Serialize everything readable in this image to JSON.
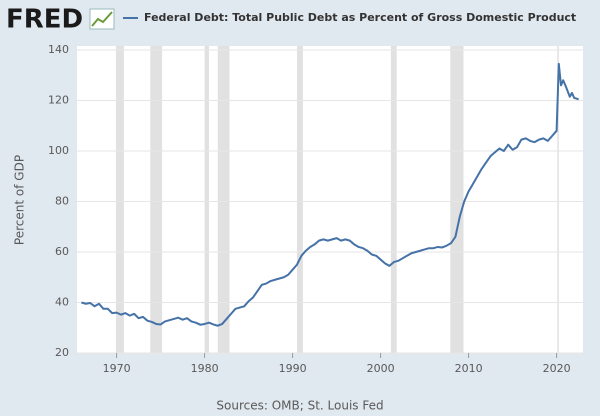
{
  "logo": "FRED",
  "chart_data": {
    "type": "line",
    "title": "Federal Debt: Total Public Debt as Percent of Gross Domestic Product",
    "y_label": "Percent of GDP",
    "source": "Sources: OMB; St. Louis Fed",
    "x": [
      1966.0,
      1966.5,
      1967.0,
      1967.5,
      1968.0,
      1968.5,
      1969.0,
      1969.5,
      1970.0,
      1970.5,
      1971.0,
      1971.5,
      1972.0,
      1972.5,
      1973.0,
      1973.5,
      1974.0,
      1974.5,
      1975.0,
      1975.5,
      1976.0,
      1976.5,
      1977.0,
      1977.5,
      1978.0,
      1978.5,
      1979.0,
      1979.5,
      1980.0,
      1980.5,
      1981.0,
      1981.5,
      1982.0,
      1982.5,
      1983.0,
      1983.5,
      1984.0,
      1984.5,
      1985.0,
      1985.5,
      1986.0,
      1986.5,
      1987.0,
      1987.5,
      1988.0,
      1988.5,
      1989.0,
      1989.5,
      1990.0,
      1990.5,
      1991.0,
      1991.5,
      1992.0,
      1992.5,
      1993.0,
      1993.5,
      1994.0,
      1994.5,
      1995.0,
      1995.5,
      1996.0,
      1996.5,
      1997.0,
      1997.5,
      1998.0,
      1998.5,
      1999.0,
      1999.5,
      2000.0,
      2000.5,
      2001.0,
      2001.5,
      2002.0,
      2002.5,
      2003.0,
      2003.5,
      2004.0,
      2004.5,
      2005.0,
      2005.5,
      2006.0,
      2006.5,
      2007.0,
      2007.5,
      2008.0,
      2008.5,
      2009.0,
      2009.5,
      2010.0,
      2010.5,
      2011.0,
      2011.5,
      2012.0,
      2012.5,
      2013.0,
      2013.5,
      2014.0,
      2014.5,
      2015.0,
      2015.5,
      2016.0,
      2016.5,
      2017.0,
      2017.5,
      2018.0,
      2018.5,
      2019.0,
      2019.5,
      2020.0,
      2020.25,
      2020.5,
      2020.75,
      2021.0,
      2021.5,
      2021.75,
      2022.0,
      2022.5
    ],
    "series": [
      {
        "name": "Federal Debt: Total Public Debt as Percent of Gross Domestic Product",
        "color": "#4572a7",
        "values": [
          40,
          39.5,
          39.8,
          38.5,
          39.5,
          37.5,
          37.5,
          35.8,
          36,
          35.2,
          35.8,
          34.8,
          35.5,
          33.8,
          34.3,
          32.8,
          32.3,
          31.5,
          31.3,
          32.5,
          33,
          33.5,
          34,
          33.2,
          33.8,
          32.5,
          32,
          31.2,
          31.5,
          32,
          31.3,
          30.8,
          31.5,
          33.5,
          35.5,
          37.5,
          38,
          38.5,
          40.5,
          42,
          44.5,
          47,
          47.5,
          48.5,
          49,
          49.5,
          50,
          51,
          53,
          55,
          58.5,
          60.5,
          62,
          63,
          64.5,
          65,
          64.5,
          65,
          65.5,
          64.5,
          65,
          64.5,
          63,
          62,
          61.5,
          60.5,
          59,
          58.5,
          57,
          55.5,
          54.5,
          56,
          56.5,
          57.5,
          58.5,
          59.5,
          60,
          60.5,
          61,
          61.5,
          61.5,
          62,
          61.8,
          62.5,
          63.5,
          66,
          74,
          80,
          84,
          87,
          90,
          93,
          95.5,
          98,
          99.5,
          101,
          100,
          102.5,
          100.5,
          101.5,
          104.5,
          105,
          104,
          103.5,
          104.5,
          105,
          104,
          106,
          108,
          134.5,
          126,
          128,
          126,
          121.5,
          123,
          121,
          120.5
        ]
      }
    ],
    "recessions": [
      [
        1969.92,
        1970.83
      ],
      [
        1973.83,
        1975.17
      ],
      [
        1980.0,
        1980.5
      ],
      [
        1981.5,
        1982.83
      ],
      [
        1990.5,
        1991.17
      ],
      [
        2001.17,
        2001.83
      ],
      [
        2007.92,
        2009.42
      ],
      [
        2020.08,
        2020.25
      ]
    ],
    "xlim": [
      1965.5,
      2023
    ],
    "xticks": [
      1970,
      1980,
      1990,
      2000,
      2010,
      2020
    ],
    "ylim": [
      20,
      140
    ],
    "yticks": [
      20,
      40,
      60,
      80,
      100,
      120,
      140
    ],
    "grid": true
  }
}
